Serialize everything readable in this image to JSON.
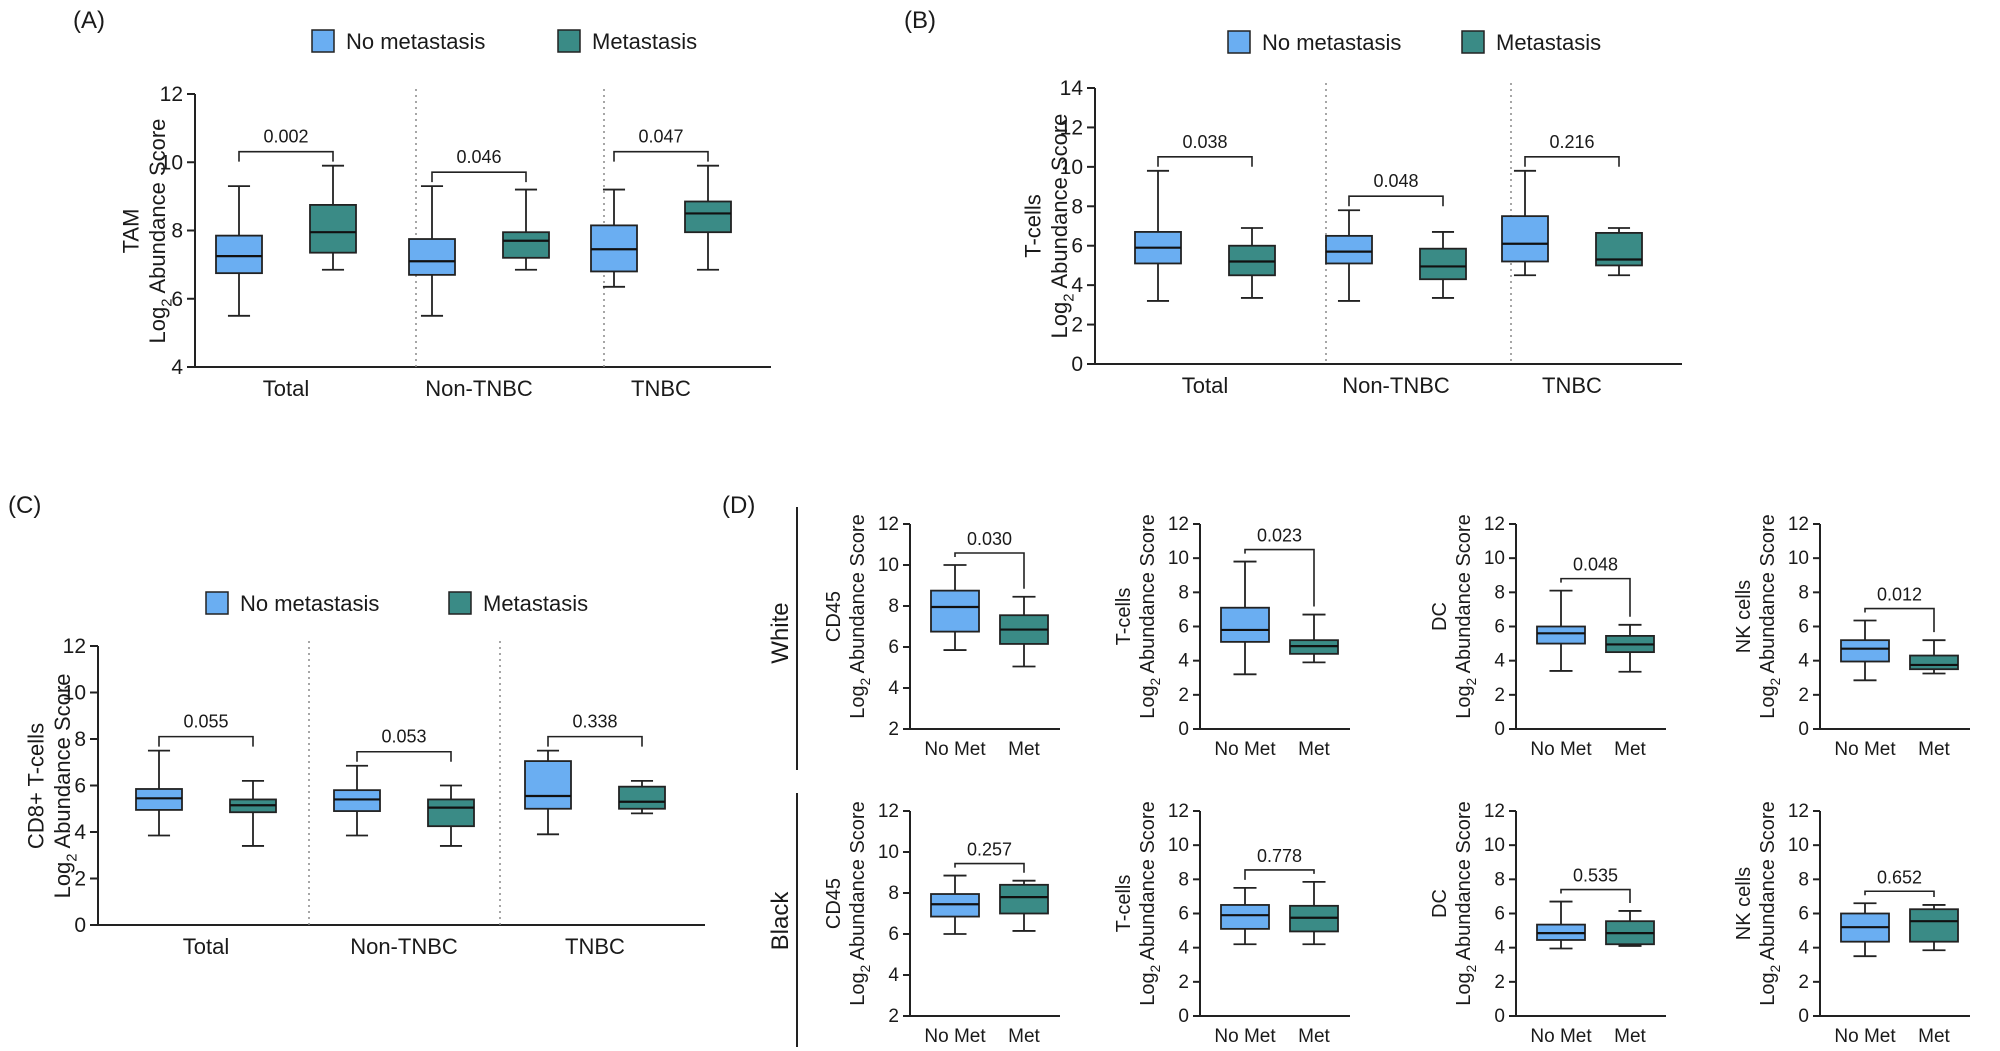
{
  "colors": {
    "no_metastasis": "#6aaef2",
    "metastasis": "#3a8b86",
    "axis": "#222222"
  },
  "chart_data": [
    {
      "type": "box",
      "panel_label": "(A)",
      "legend": [
        "No metastasis",
        "Metastasis"
      ],
      "ylabel": "TAM",
      "ylabel2": "Abundance Score",
      "ylog": "Log",
      "ylog_sub": "2",
      "ylim": [
        4,
        12
      ],
      "yticks": [
        "4",
        "6",
        "8",
        "10",
        "12"
      ],
      "groups": [
        {
          "name": "Total",
          "p": "0.002",
          "boxes": [
            {
              "series": "No metastasis",
              "min": 5.5,
              "q1": 6.75,
              "median": 7.25,
              "q3": 7.85,
              "max": 9.3
            },
            {
              "series": "Metastasis",
              "min": 6.85,
              "q1": 7.35,
              "median": 7.95,
              "q3": 8.75,
              "max": 9.9
            }
          ]
        },
        {
          "name": "Non-TNBC",
          "p": "0.046",
          "boxes": [
            {
              "series": "No metastasis",
              "min": 5.5,
              "q1": 6.7,
              "median": 7.1,
              "q3": 7.75,
              "max": 9.3
            },
            {
              "series": "Metastasis",
              "min": 6.85,
              "q1": 7.2,
              "median": 7.7,
              "q3": 7.95,
              "max": 9.2
            }
          ]
        },
        {
          "name": "TNBC",
          "p": "0.047",
          "boxes": [
            {
              "series": "No metastasis",
              "min": 6.35,
              "q1": 6.8,
              "median": 7.45,
              "q3": 8.15,
              "max": 9.2
            },
            {
              "series": "Metastasis",
              "min": 6.85,
              "q1": 7.95,
              "median": 8.5,
              "q3": 8.85,
              "max": 9.9
            }
          ]
        }
      ]
    },
    {
      "type": "box",
      "panel_label": "(B)",
      "legend": [
        "No metastasis",
        "Metastasis"
      ],
      "ylabel": "T-cells",
      "ylabel2": "Abundance Score",
      "ylog": "Log",
      "ylog_sub": "2",
      "ylim": [
        0,
        14
      ],
      "yticks": [
        "0",
        "2",
        "4",
        "6",
        "8",
        "10",
        "12",
        "14"
      ],
      "groups": [
        {
          "name": "Total",
          "p": "0.038",
          "boxes": [
            {
              "series": "No metastasis",
              "min": 3.2,
              "q1": 5.1,
              "median": 5.9,
              "q3": 6.7,
              "max": 9.8
            },
            {
              "series": "Metastasis",
              "min": 3.35,
              "q1": 4.5,
              "median": 5.2,
              "q3": 6.0,
              "max": 6.9
            }
          ]
        },
        {
          "name": "Non-TNBC",
          "p": "0.048",
          "boxes": [
            {
              "series": "No metastasis",
              "min": 3.2,
              "q1": 5.1,
              "median": 5.7,
              "q3": 6.5,
              "max": 7.8
            },
            {
              "series": "Metastasis",
              "min": 3.35,
              "q1": 4.3,
              "median": 4.95,
              "q3": 5.85,
              "max": 6.7
            }
          ]
        },
        {
          "name": "TNBC",
          "p": "0.216",
          "boxes": [
            {
              "series": "No metastasis",
              "min": 4.5,
              "q1": 5.2,
              "median": 6.1,
              "q3": 7.5,
              "max": 9.8
            },
            {
              "series": "Metastasis",
              "min": 4.5,
              "q1": 5.0,
              "median": 5.3,
              "q3": 6.65,
              "max": 6.9
            }
          ]
        }
      ]
    },
    {
      "type": "box",
      "panel_label": "(C)",
      "legend": [
        "No metastasis",
        "Metastasis"
      ],
      "ylabel": "CD8+ T-cells",
      "ylabel2": "Abundance Score",
      "ylog": "Log",
      "ylog_sub": "2",
      "ylim": [
        0,
        12
      ],
      "yticks": [
        "0",
        "2",
        "4",
        "6",
        "8",
        "10",
        "12"
      ],
      "groups": [
        {
          "name": "Total",
          "p": "0.055",
          "boxes": [
            {
              "series": "No metastasis",
              "min": 3.85,
              "q1": 4.95,
              "median": 5.45,
              "q3": 5.85,
              "max": 7.5
            },
            {
              "series": "Metastasis",
              "min": 3.4,
              "q1": 4.85,
              "median": 5.15,
              "q3": 5.4,
              "max": 6.2
            }
          ]
        },
        {
          "name": "Non-TNBC",
          "p": "0.053",
          "boxes": [
            {
              "series": "No metastasis",
              "min": 3.85,
              "q1": 4.9,
              "median": 5.4,
              "q3": 5.8,
              "max": 6.85
            },
            {
              "series": "Metastasis",
              "min": 3.4,
              "q1": 4.25,
              "median": 5.05,
              "q3": 5.4,
              "max": 6.0
            }
          ]
        },
        {
          "name": "TNBC",
          "p": "0.338",
          "boxes": [
            {
              "series": "No metastasis",
              "min": 3.9,
              "q1": 5.0,
              "median": 5.55,
              "q3": 7.05,
              "max": 7.5
            },
            {
              "series": "Metastasis",
              "min": 4.8,
              "q1": 5.0,
              "median": 5.3,
              "q3": 5.95,
              "max": 6.2
            }
          ]
        }
      ]
    }
  ],
  "panel_d": {
    "panel_label": "(D)",
    "rows": [
      "White",
      "Black"
    ],
    "categories": [
      "No Met",
      "Met"
    ],
    "ylog": "Log",
    "ylog_sub": "2",
    "ylabel2": "Abundance Score",
    "charts": [
      {
        "row": "White",
        "cell": "CD45",
        "ylim": [
          2,
          12
        ],
        "yticks": [
          "2",
          "4",
          "6",
          "8",
          "10",
          "12"
        ],
        "p": "0.030",
        "boxes": [
          {
            "series": "No Met",
            "min": 5.85,
            "q1": 6.75,
            "median": 7.95,
            "q3": 8.75,
            "max": 10.0
          },
          {
            "series": "Met",
            "min": 5.05,
            "q1": 6.15,
            "median": 6.85,
            "q3": 7.55,
            "max": 8.45
          }
        ]
      },
      {
        "row": "White",
        "cell": "T-cells",
        "ylim": [
          0,
          12
        ],
        "yticks": [
          "0",
          "2",
          "4",
          "6",
          "8",
          "10",
          "12"
        ],
        "p": "0.023",
        "boxes": [
          {
            "series": "No Met",
            "min": 3.2,
            "q1": 5.1,
            "median": 5.8,
            "q3": 7.1,
            "max": 9.8
          },
          {
            "series": "Met",
            "min": 3.9,
            "q1": 4.4,
            "median": 4.85,
            "q3": 5.2,
            "max": 6.7
          }
        ]
      },
      {
        "row": "White",
        "cell": "DC",
        "ylim": [
          0,
          12
        ],
        "yticks": [
          "0",
          "2",
          "4",
          "6",
          "8",
          "10",
          "12"
        ],
        "p": "0.048",
        "boxes": [
          {
            "series": "No Met",
            "min": 3.4,
            "q1": 5.0,
            "median": 5.6,
            "q3": 6.0,
            "max": 8.1
          },
          {
            "series": "Met",
            "min": 3.35,
            "q1": 4.5,
            "median": 4.95,
            "q3": 5.45,
            "max": 6.1
          }
        ]
      },
      {
        "row": "White",
        "cell": "NK cells",
        "ylim": [
          0,
          12
        ],
        "yticks": [
          "0",
          "2",
          "4",
          "6",
          "8",
          "10",
          "12"
        ],
        "p": "0.012",
        "boxes": [
          {
            "series": "No Met",
            "min": 2.85,
            "q1": 3.95,
            "median": 4.7,
            "q3": 5.2,
            "max": 6.35
          },
          {
            "series": "Met",
            "min": 3.25,
            "q1": 3.5,
            "median": 3.75,
            "q3": 4.3,
            "max": 5.2
          }
        ]
      },
      {
        "row": "Black",
        "cell": "CD45",
        "ylim": [
          2,
          12
        ],
        "yticks": [
          "2",
          "4",
          "6",
          "8",
          "10",
          "12"
        ],
        "p": "0.257",
        "boxes": [
          {
            "series": "No Met",
            "min": 6.0,
            "q1": 6.85,
            "median": 7.45,
            "q3": 7.95,
            "max": 8.85
          },
          {
            "series": "Met",
            "min": 6.15,
            "q1": 7.0,
            "median": 7.8,
            "q3": 8.4,
            "max": 8.6
          }
        ]
      },
      {
        "row": "Black",
        "cell": "T-cells",
        "ylim": [
          0,
          12
        ],
        "yticks": [
          "0",
          "2",
          "4",
          "6",
          "8",
          "10",
          "12"
        ],
        "p": "0.778",
        "boxes": [
          {
            "series": "No Met",
            "min": 4.2,
            "q1": 5.1,
            "median": 5.9,
            "q3": 6.5,
            "max": 7.5
          },
          {
            "series": "Met",
            "min": 4.2,
            "q1": 4.95,
            "median": 5.75,
            "q3": 6.45,
            "max": 7.85
          }
        ]
      },
      {
        "row": "Black",
        "cell": "DC",
        "ylim": [
          0,
          12
        ],
        "yticks": [
          "0",
          "2",
          "4",
          "6",
          "8",
          "10",
          "12"
        ],
        "p": "0.535",
        "boxes": [
          {
            "series": "No Met",
            "min": 3.95,
            "q1": 4.45,
            "median": 4.85,
            "q3": 5.35,
            "max": 6.7
          },
          {
            "series": "Met",
            "min": 4.1,
            "q1": 4.2,
            "median": 4.85,
            "q3": 5.55,
            "max": 6.15
          }
        ]
      },
      {
        "row": "Black",
        "cell": "NK cells",
        "ylim": [
          0,
          12
        ],
        "yticks": [
          "0",
          "2",
          "4",
          "6",
          "8",
          "10",
          "12"
        ],
        "p": "0.652",
        "boxes": [
          {
            "series": "No Met",
            "min": 3.5,
            "q1": 4.35,
            "median": 5.2,
            "q3": 6.0,
            "max": 6.6
          },
          {
            "series": "Met",
            "min": 3.85,
            "q1": 4.35,
            "median": 5.55,
            "q3": 6.25,
            "max": 6.5
          }
        ]
      }
    ]
  }
}
